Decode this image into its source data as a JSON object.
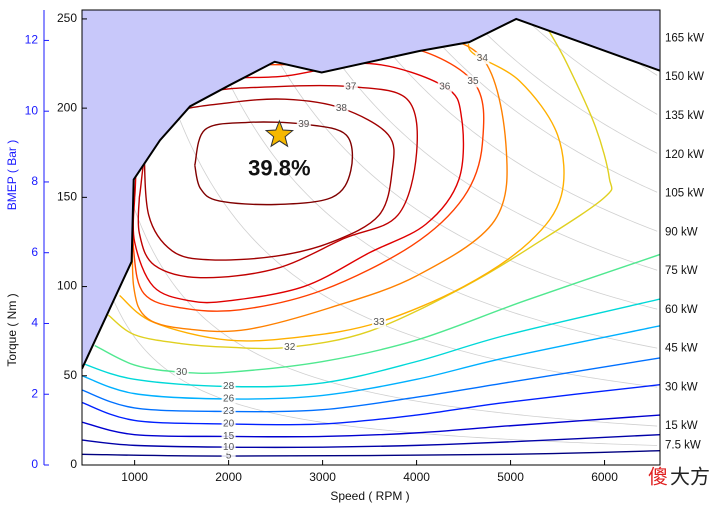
{
  "chart_data": {
    "type": "contour",
    "x_label": "Speed ( RPM )",
    "y_label": "Torque ( Nm )",
    "y2_label": "BMEP ( Bar )",
    "xlim": [
      440,
      6590
    ],
    "ylim": [
      0,
      255
    ],
    "y2lim": [
      0,
      12.86
    ],
    "xticks": [
      1000,
      2000,
      3000,
      4000,
      5000,
      6000
    ],
    "yticks": [
      0,
      50,
      100,
      150,
      200,
      250
    ],
    "y2ticks": [
      0,
      2,
      4,
      6,
      8,
      10,
      12
    ],
    "power_ticks": [
      {
        "value": 165,
        "label": "165 kW"
      },
      {
        "value": 150,
        "label": "150 kW"
      },
      {
        "value": 135,
        "label": "135 kW"
      },
      {
        "value": 120,
        "label": "120 kW"
      },
      {
        "value": 105,
        "label": "105 kW"
      },
      {
        "value": 90,
        "label": "90 kW"
      },
      {
        "value": 75,
        "label": "75 kW"
      },
      {
        "value": 60,
        "label": "60 kW"
      },
      {
        "value": 45,
        "label": "45 kW"
      },
      {
        "value": 30,
        "label": "30 kW"
      },
      {
        "value": 15,
        "label": "15 kW"
      },
      {
        "value": 7.5,
        "label": "7.5 kW"
      }
    ],
    "max_torque": {
      "color": "#000000",
      "fill": "#c8c8fa",
      "x": [
        440,
        968,
        990,
        1270,
        1590,
        2015,
        2490,
        2990,
        4030,
        4560,
        5060,
        6590
      ],
      "y": [
        54,
        114,
        160,
        182,
        201,
        213,
        226,
        220,
        232,
        237,
        250,
        221
      ]
    },
    "series": [
      {
        "name": "5",
        "color": "#000080",
        "x": [
          440,
          2000,
          5000,
          6590
        ],
        "y": [
          6,
          5,
          6,
          8
        ]
      },
      {
        "name": "10",
        "color": "#0000a8",
        "x": [
          440,
          1000,
          2000,
          3000,
          4000,
          5000,
          6590
        ],
        "y": [
          14,
          11,
          10,
          10,
          11,
          13,
          17
        ]
      },
      {
        "name": "15",
        "color": "#0000d0",
        "x": [
          440,
          1000,
          2000,
          3000,
          4000,
          5000,
          6590
        ],
        "y": [
          24,
          17,
          16,
          16,
          18,
          22,
          28
        ]
      },
      {
        "name": "20",
        "color": "#0020ff",
        "x": [
          440,
          1000,
          2000,
          3000,
          4000,
          4940,
          6590
        ],
        "y": [
          35,
          25,
          23,
          23,
          28,
          35,
          45
        ]
      },
      {
        "name": "23",
        "color": "#0070ff",
        "x": [
          440,
          1000,
          2000,
          3000,
          4000,
          4940,
          6590
        ],
        "y": [
          42,
          32,
          30,
          31,
          38,
          46,
          60
        ]
      },
      {
        "name": "26",
        "color": "#00b0ff",
        "x": [
          440,
          1000,
          2000,
          3000,
          4000,
          4940,
          6590
        ],
        "y": [
          50,
          40,
          37,
          39,
          48,
          60,
          78
        ]
      },
      {
        "name": "28",
        "color": "#00d8d8",
        "x": [
          440,
          1000,
          2000,
          3000,
          4000,
          4970,
          6590
        ],
        "y": [
          57,
          48,
          44,
          46,
          58,
          73,
          93
        ]
      },
      {
        "name": "30",
        "color": "#50e890",
        "x": [
          575,
          1000,
          1500,
          2000,
          3000,
          4000,
          5150,
          6590
        ],
        "y": [
          67,
          56,
          52,
          52,
          58,
          70,
          92,
          118
        ]
      },
      {
        "name": "32",
        "color": "#e0d020",
        "x": [
          720,
          1000,
          1500,
          2000,
          2650,
          3500,
          4510,
          5300,
          6000,
          6050,
          5900,
          5600,
          5400
        ],
        "y": [
          84,
          73,
          68,
          66,
          66,
          75,
          100,
          125,
          150,
          161,
          190,
          225,
          244
        ]
      },
      {
        "name": "33",
        "color": "#ffb000",
        "x": [
          840,
          1200,
          1990,
          2800,
          3600,
          4500,
          5200,
          5540,
          5500,
          5100,
          4620,
          4550
        ],
        "y": [
          95,
          80,
          70,
          72,
          80,
          100,
          125,
          151,
          185,
          215,
          230,
          236
        ]
      },
      {
        "name": "34",
        "color": "#ff8000",
        "x": [
          980,
          1000,
          1500,
          2800,
          4000,
          4700,
          4950,
          4830,
          4000,
          3070,
          2200,
          1600,
          1140,
          990,
          980
        ],
        "y": [
          140,
          200,
          230,
          232,
          240,
          228,
          180,
          137,
          106,
          88,
          76,
          76,
          82,
          100,
          140
        ]
      },
      {
        "name": "35",
        "color": "#ff4000",
        "x": [
          990,
          1050,
          1500,
          2800,
          3800,
          4600,
          4700,
          4500,
          3950,
          3000,
          2120,
          1500,
          1100,
          990,
          990
        ],
        "y": [
          150,
          195,
          222,
          225,
          235,
          215,
          180,
          150,
          123,
          98,
          87,
          88,
          96,
          120,
          150
        ]
      },
      {
        "name": "36",
        "color": "#e00000",
        "x": [
          1000,
          1100,
          1600,
          2600,
          3500,
          4300,
          4480,
          4450,
          4100,
          3500,
          2800,
          2000,
          1590,
          1200,
          1000,
          1000
        ],
        "y": [
          150,
          190,
          214,
          218,
          225,
          212,
          194,
          160,
          135,
          119,
          100,
          92,
          92,
          100,
          125,
          150
        ]
      },
      {
        "name": "37",
        "color": "#c00000",
        "x": [
          1050,
          1200,
          1700,
          2500,
          3300,
          3900,
          4000,
          3800,
          3230,
          2500,
          1700,
          1210,
          1050,
          1050
        ],
        "y": [
          150,
          190,
          208,
          212,
          212,
          205,
          175,
          140,
          127,
          110,
          105,
          112,
          130,
          150
        ]
      },
      {
        "name": "38",
        "color": "#a00000",
        "x": [
          1100,
          1400,
          2000,
          2600,
          3200,
          3700,
          3740,
          3600,
          3100,
          2500,
          1800,
          1400,
          1150,
          1100
        ],
        "y": [
          180,
          197,
          203,
          205,
          200,
          185,
          165,
          140,
          125,
          117,
          115,
          120,
          140,
          180
        ]
      },
      {
        "name": "39",
        "color": "#800000",
        "x": [
          1640,
          1750,
          2200,
          2800,
          3250,
          3300,
          3100,
          2500,
          1900,
          1700,
          1640
        ],
        "y": [
          168,
          188,
          192,
          191,
          185,
          165,
          150,
          146,
          148,
          155,
          168
        ]
      }
    ],
    "annotations": [
      {
        "x": 2540,
        "y": 185,
        "text": "39.8%",
        "color": "#f5b800"
      }
    ],
    "watermark": [
      "傻",
      "大方"
    ]
  }
}
